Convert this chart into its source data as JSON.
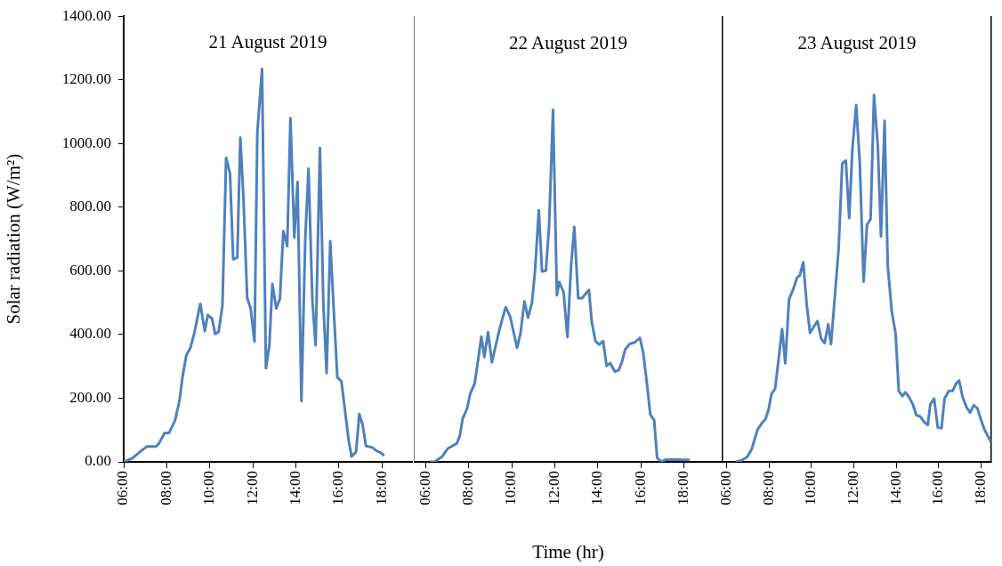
{
  "chart_data": [
    {
      "type": "line",
      "title": "21 August 2019",
      "ylabel": "Solar radiation (W/m²)",
      "xlim": [
        6,
        19.4
      ],
      "ylim": [
        0,
        1400
      ],
      "xticks": [
        {
          "value": 6,
          "label": "06:00"
        },
        {
          "value": 8,
          "label": "08:00"
        },
        {
          "value": 10,
          "label": "10:00"
        },
        {
          "value": 12,
          "label": "12:00"
        },
        {
          "value": 14,
          "label": "14:00"
        },
        {
          "value": 16,
          "label": "16:00"
        },
        {
          "value": 18,
          "label": "18:00"
        }
      ],
      "yticks": [
        {
          "value": 0,
          "label": "0.00"
        },
        {
          "value": 200,
          "label": "200.00"
        },
        {
          "value": 400,
          "label": "400.00"
        },
        {
          "value": 600,
          "label": "600.00"
        },
        {
          "value": 800,
          "label": "800.00"
        },
        {
          "value": 1000,
          "label": "1000.00"
        },
        {
          "value": 1200,
          "label": "1200.00"
        },
        {
          "value": 1400,
          "label": "1400.00"
        }
      ],
      "x": [
        6.0,
        6.39,
        6.8,
        7.08,
        7.49,
        7.63,
        7.9,
        8.11,
        8.39,
        8.59,
        8.73,
        8.91,
        9.1,
        9.28,
        9.56,
        9.77,
        9.91,
        10.11,
        10.25,
        10.41,
        10.59,
        10.76,
        10.94,
        11.09,
        11.28,
        11.42,
        11.56,
        11.74,
        11.9,
        12.08,
        12.21,
        12.43,
        12.61,
        12.77,
        12.91,
        13.09,
        13.26,
        13.42,
        13.6,
        13.75,
        13.93,
        14.08,
        14.26,
        14.44,
        14.59,
        14.77,
        14.92,
        15.12,
        15.28,
        15.43,
        15.6,
        15.77,
        15.93,
        16.12,
        16.29,
        16.46,
        16.59,
        16.8,
        16.95,
        17.1,
        17.26,
        17.56,
        17.77,
        17.94,
        18.11
      ],
      "series": [
        {
          "color": "#4f81bd",
          "values": [
            0,
            11,
            34,
            48,
            48,
            57,
            91,
            91,
            131,
            191,
            265,
            335,
            358,
            404,
            496,
            411,
            461,
            450,
            402,
            408,
            491,
            955,
            907,
            636,
            642,
            1018,
            838,
            515,
            482,
            378,
            1033,
            1234,
            294,
            366,
            559,
            482,
            512,
            725,
            678,
            1080,
            704,
            879,
            191,
            704,
            921,
            505,
            366,
            986,
            496,
            279,
            693,
            469,
            265,
            253,
            159,
            66,
            17,
            31,
            150,
            118,
            50,
            45,
            34,
            29,
            20
          ]
        }
      ]
    },
    {
      "type": "line",
      "title": "22 August 2019",
      "xlabel": "Time (hr)",
      "tick_labels": "x",
      "xlim": [
        5.45,
        19.8
      ],
      "ylim": [
        0,
        1400
      ],
      "xticks": [
        {
          "value": 6,
          "label": "06:00"
        },
        {
          "value": 8,
          "label": "08:00"
        },
        {
          "value": 10,
          "label": "10:00"
        },
        {
          "value": 12,
          "label": "12:00"
        },
        {
          "value": 14,
          "label": "14:00"
        },
        {
          "value": 16,
          "label": "16:00"
        },
        {
          "value": 18,
          "label": "18:00"
        }
      ],
      "x": [
        6.21,
        6.41,
        6.76,
        7.03,
        7.45,
        7.59,
        7.72,
        7.93,
        8.07,
        8.28,
        8.41,
        8.59,
        8.73,
        8.9,
        9.08,
        9.45,
        9.72,
        9.93,
        10.25,
        10.41,
        10.59,
        10.76,
        10.94,
        11.08,
        11.26,
        11.41,
        11.59,
        11.74,
        11.92,
        12.1,
        12.21,
        12.41,
        12.59,
        12.76,
        12.91,
        13.09,
        13.27,
        13.59,
        13.72,
        13.89,
        14.07,
        14.25,
        14.41,
        14.58,
        14.79,
        14.97,
        15.13,
        15.27,
        15.48,
        15.72,
        15.96,
        16.11,
        16.3,
        16.44,
        16.62,
        16.76,
        16.97,
        17.14,
        17.59,
        17.86,
        18.28
      ],
      "series": [
        {
          "color": "#4f81bd",
          "values": [
            0,
            0,
            16,
            42,
            58,
            82,
            136,
            168,
            214,
            247,
            307,
            394,
            330,
            408,
            313,
            422,
            487,
            457,
            359,
            405,
            505,
            454,
            500,
            597,
            792,
            599,
            602,
            745,
            1108,
            524,
            566,
            534,
            393,
            617,
            739,
            515,
            515,
            541,
            441,
            380,
            369,
            380,
            302,
            311,
            284,
            288,
            316,
            353,
            371,
            376,
            390,
            344,
            238,
            149,
            131,
            12,
            0,
            7,
            8,
            6,
            6
          ]
        }
      ]
    },
    {
      "type": "line",
      "title": "23 August 2019",
      "tick_labels": "x",
      "xlim": [
        5.8,
        18.48
      ],
      "ylim": [
        0,
        1400
      ],
      "xticks": [
        {
          "value": 6,
          "label": "06:00"
        },
        {
          "value": 8,
          "label": "08:00"
        },
        {
          "value": 10,
          "label": "10:00"
        },
        {
          "value": 12,
          "label": "12:00"
        },
        {
          "value": 14,
          "label": "14:00"
        },
        {
          "value": 16,
          "label": "16:00"
        },
        {
          "value": 18,
          "label": "18:00"
        }
      ],
      "x": [
        6.41,
        6.69,
        6.97,
        7.17,
        7.45,
        7.66,
        7.83,
        7.97,
        8.11,
        8.28,
        8.41,
        8.61,
        8.76,
        8.94,
        9.13,
        9.31,
        9.45,
        9.61,
        9.77,
        9.93,
        10.28,
        10.46,
        10.62,
        10.79,
        10.92,
        11.1,
        11.28,
        11.45,
        11.62,
        11.78,
        11.93,
        12.11,
        12.28,
        12.46,
        12.62,
        12.79,
        12.95,
        13.13,
        13.28,
        13.45,
        13.6,
        13.79,
        13.97,
        14.12,
        14.29,
        14.44,
        14.62,
        14.79,
        14.95,
        15.13,
        15.31,
        15.49,
        15.61,
        15.79,
        15.96,
        16.14,
        16.28,
        16.48,
        16.66,
        16.83,
        16.97,
        17.13,
        17.31,
        17.49,
        17.66,
        17.83,
        18.0,
        18.17,
        18.32,
        18.48
      ],
      "series": [
        {
          "color": "#4f81bd",
          "values": [
            0,
            4,
            16,
            39,
            101,
            122,
            135,
            164,
            214,
            230,
            302,
            418,
            310,
            512,
            542,
            579,
            587,
            628,
            497,
            406,
            443,
            387,
            374,
            433,
            370,
            519,
            671,
            939,
            948,
            767,
            986,
            1123,
            939,
            567,
            746,
            764,
            1154,
            995,
            709,
            1073,
            616,
            473,
            404,
            223,
            207,
            219,
            202,
            180,
            147,
            143,
            126,
            116,
            181,
            199,
            108,
            106,
            199,
            223,
            223,
            247,
            256,
            205,
            173,
            155,
            178,
            169,
            133,
            101,
            82,
            62
          ]
        }
      ]
    }
  ]
}
